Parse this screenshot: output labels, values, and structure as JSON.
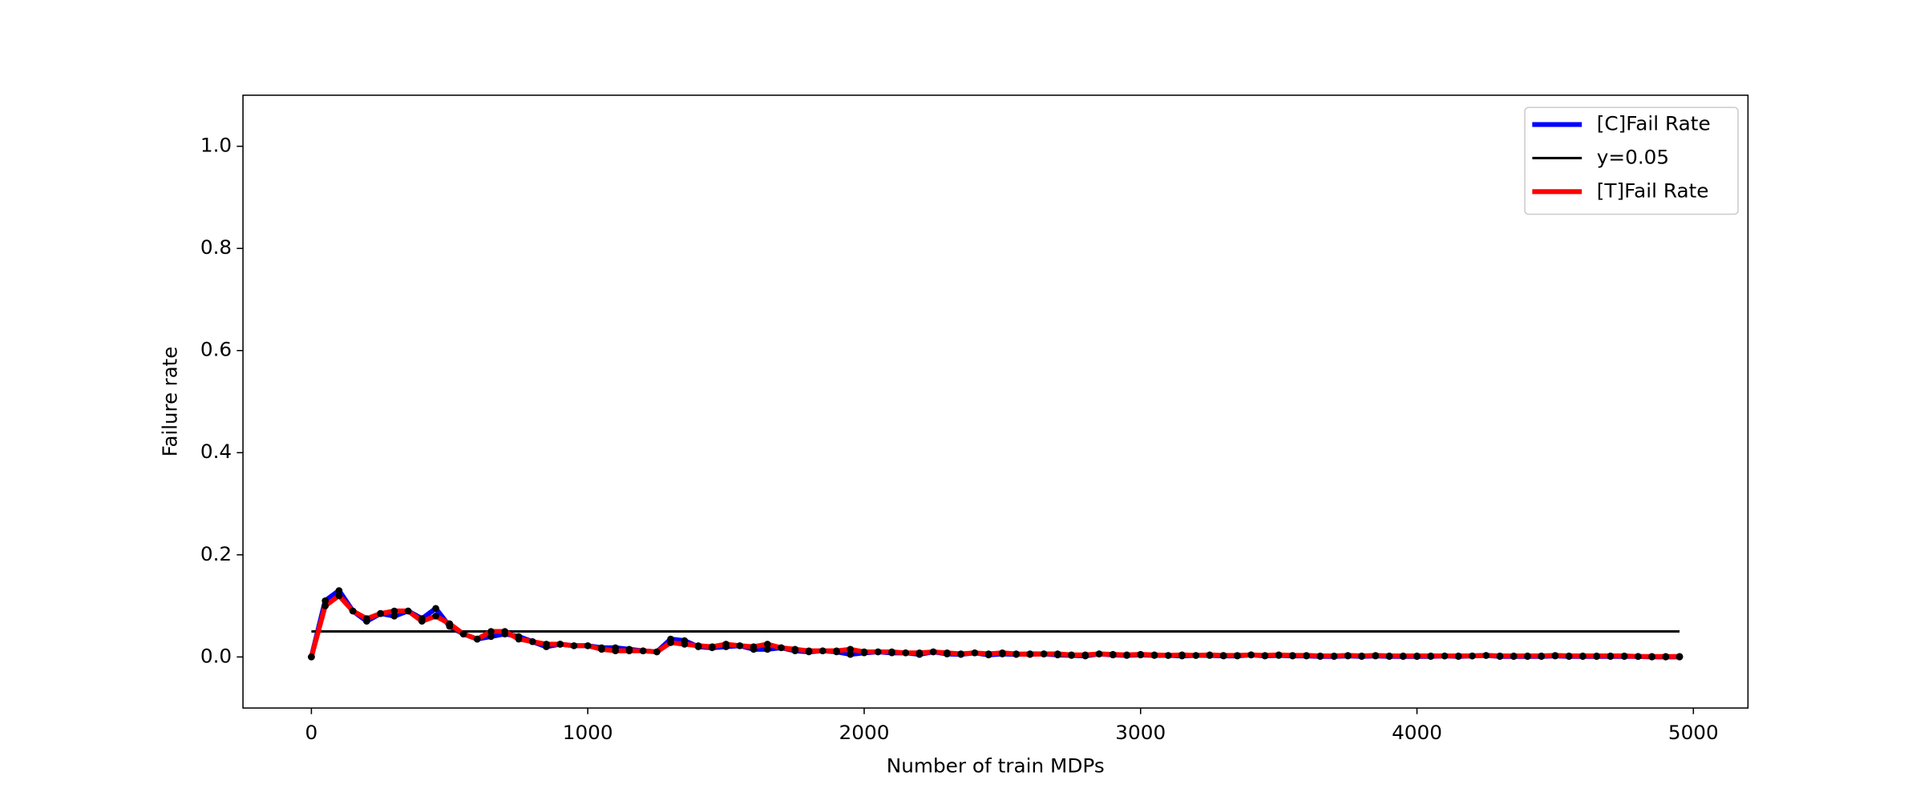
{
  "chart_data": {
    "type": "line",
    "xlabel": "Number of train MDPs",
    "ylabel": "Failure rate",
    "x": [
      0,
      50,
      100,
      150,
      200,
      250,
      300,
      350,
      400,
      450,
      500,
      550,
      600,
      650,
      700,
      750,
      800,
      850,
      900,
      950,
      1000,
      1050,
      1100,
      1150,
      1200,
      1250,
      1300,
      1350,
      1400,
      1450,
      1500,
      1550,
      1600,
      1650,
      1700,
      1750,
      1800,
      1850,
      1900,
      1950,
      2000,
      2050,
      2100,
      2150,
      2200,
      2250,
      2300,
      2350,
      2400,
      2450,
      2500,
      2550,
      2600,
      2650,
      2700,
      2750,
      2800,
      2850,
      2900,
      2950,
      3000,
      3050,
      3100,
      3150,
      3200,
      3250,
      3300,
      3350,
      3400,
      3450,
      3500,
      3550,
      3600,
      3650,
      3700,
      3750,
      3800,
      3850,
      3900,
      3950,
      4000,
      4050,
      4100,
      4150,
      4200,
      4250,
      4300,
      4350,
      4400,
      4450,
      4500,
      4550,
      4600,
      4650,
      4700,
      4750,
      4800,
      4850,
      4900,
      4950
    ],
    "series": [
      {
        "name": "[C]Fail Rate",
        "color": "#0000ff",
        "markers": true,
        "values": [
          0,
          0.11,
          0.13,
          0.09,
          0.07,
          0.085,
          0.08,
          0.09,
          0.075,
          0.095,
          0.06,
          0.045,
          0.035,
          0.04,
          0.045,
          0.04,
          0.03,
          0.02,
          0.025,
          0.022,
          0.022,
          0.018,
          0.018,
          0.015,
          0.012,
          0.01,
          0.035,
          0.032,
          0.02,
          0.018,
          0.02,
          0.022,
          0.015,
          0.015,
          0.018,
          0.012,
          0.01,
          0.012,
          0.01,
          0.005,
          0.008,
          0.01,
          0.008,
          0.008,
          0.005,
          0.01,
          0.006,
          0.005,
          0.008,
          0.004,
          0.006,
          0.005,
          0.006,
          0.006,
          0.004,
          0.003,
          0.002,
          0.006,
          0.004,
          0.003,
          0.004,
          0.003,
          0.003,
          0.002,
          0.003,
          0.003,
          0.002,
          0.002,
          0.004,
          0.002,
          0.003,
          0.002,
          0.002,
          0.001,
          0.001,
          0.002,
          0.001,
          0.002,
          0.001,
          0.001,
          0.001,
          0.001,
          0.002,
          0.001,
          0.002,
          0.003,
          0.001,
          0.001,
          0.001,
          0.001,
          0.002,
          0.001,
          0.001,
          0.001,
          0.001,
          0.001,
          0.001,
          0,
          0,
          0
        ]
      },
      {
        "name": "y=0.05",
        "color": "#000000",
        "markers": false,
        "x": [
          0,
          4950
        ],
        "values": [
          0.05,
          0.05
        ]
      },
      {
        "name": "[T]Fail Rate",
        "color": "#ff0000",
        "markers": true,
        "values": [
          0,
          0.1,
          0.12,
          0.09,
          0.075,
          0.085,
          0.09,
          0.09,
          0.07,
          0.08,
          0.065,
          0.045,
          0.035,
          0.05,
          0.05,
          0.035,
          0.03,
          0.025,
          0.025,
          0.022,
          0.022,
          0.015,
          0.012,
          0.012,
          0.012,
          0.01,
          0.028,
          0.025,
          0.022,
          0.02,
          0.025,
          0.022,
          0.02,
          0.025,
          0.018,
          0.015,
          0.012,
          0.012,
          0.012,
          0.015,
          0.01,
          0.01,
          0.01,
          0.008,
          0.008,
          0.01,
          0.008,
          0.006,
          0.008,
          0.006,
          0.008,
          0.006,
          0.005,
          0.006,
          0.006,
          0.004,
          0.004,
          0.006,
          0.005,
          0.004,
          0.005,
          0.004,
          0.003,
          0.004,
          0.003,
          0.004,
          0.003,
          0.003,
          0.004,
          0.003,
          0.004,
          0.003,
          0.003,
          0.002,
          0.002,
          0.003,
          0.002,
          0.003,
          0.002,
          0.002,
          0.002,
          0.002,
          0.002,
          0.002,
          0.002,
          0.003,
          0.002,
          0.002,
          0.002,
          0.002,
          0.003,
          0.002,
          0.002,
          0.002,
          0.002,
          0.002,
          0.001,
          0.001,
          0.001,
          0.001
        ]
      }
    ],
    "xlim": [
      -247.5,
      5197.5
    ],
    "xticks": [
      0,
      1000,
      2000,
      3000,
      4000,
      5000
    ],
    "ylim": [
      -0.1,
      1.1
    ],
    "yticks": [
      {
        "value": 0,
        "label": "0.0"
      },
      0.2,
      0.4,
      0.6,
      0.8,
      {
        "value": 1,
        "label": "1.0"
      }
    ],
    "legend": "upper right"
  }
}
